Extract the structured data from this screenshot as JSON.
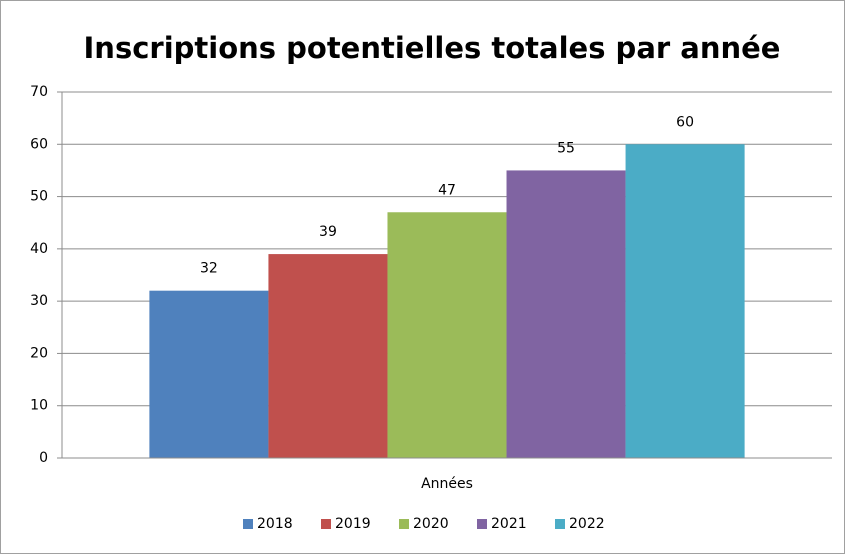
{
  "chart_data": {
    "type": "bar",
    "title": "Inscriptions potentielles totales par année",
    "categories": [
      "Années"
    ],
    "series": [
      {
        "name": "2018",
        "color": "#4f81bd",
        "values": [
          32
        ]
      },
      {
        "name": "2019",
        "color": "#c0504d",
        "values": [
          39
        ]
      },
      {
        "name": "2020",
        "color": "#9bbb59",
        "values": [
          47
        ]
      },
      {
        "name": "2021",
        "color": "#8064a2",
        "values": [
          55
        ]
      },
      {
        "name": "2022",
        "color": "#4bacc6",
        "values": [
          60
        ]
      }
    ],
    "ylim": [
      0,
      70
    ],
    "yticks": [
      0,
      10,
      20,
      30,
      40,
      50,
      60,
      70
    ],
    "grid": true,
    "legend": "bottom"
  }
}
